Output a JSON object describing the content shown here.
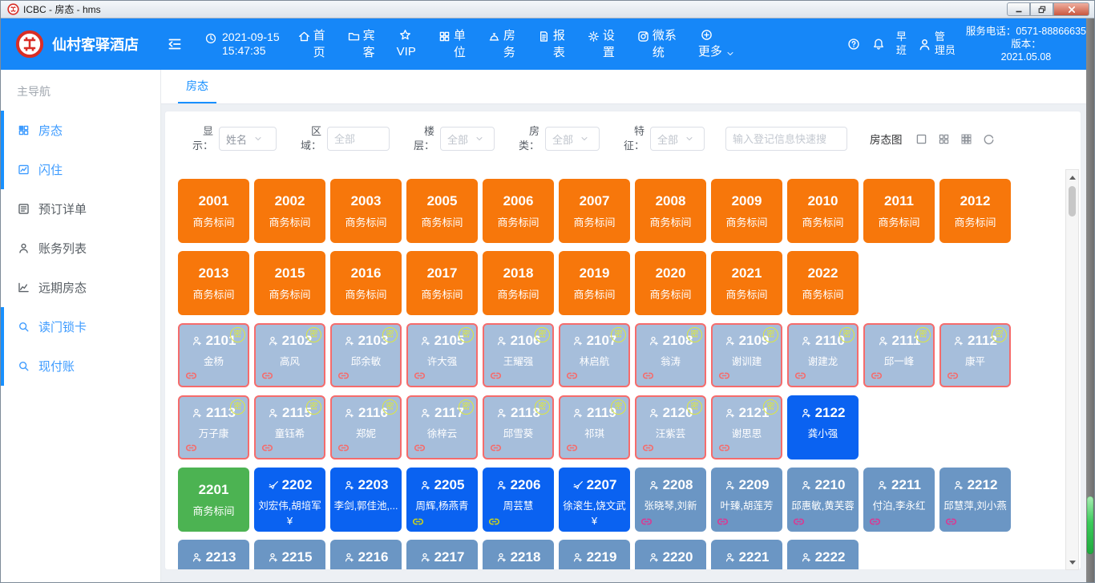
{
  "titlebar": {
    "title": "ICBC - 房态 - hms"
  },
  "header": {
    "hotel_name": "仙村客驿酒店",
    "date": "2021-09-15",
    "time": "15:47:35",
    "nav": [
      {
        "key": "home",
        "icon": "home-icon",
        "label": "首\n页"
      },
      {
        "key": "guests",
        "icon": "folder-icon",
        "label": "宾\n客"
      },
      {
        "key": "vip",
        "icon": "star-icon",
        "label": "VIP",
        "stacked": true
      },
      {
        "key": "units",
        "icon": "units-grid-icon",
        "label": "单\n位"
      },
      {
        "key": "housekeeping",
        "icon": "service-bell-icon",
        "label": "房\n务"
      },
      {
        "key": "reports",
        "icon": "report-doc-icon",
        "label": "报\n表"
      },
      {
        "key": "settings",
        "icon": "gear-icon",
        "label": "设\n置"
      },
      {
        "key": "mini-system",
        "icon": "mini-system-icon",
        "label": "微系\n统"
      },
      {
        "key": "more",
        "icon": "plus-circle-icon",
        "label": "更多",
        "stacked": true,
        "chevron": true
      }
    ],
    "shift_label": "早\n班",
    "user_label": "管\n理员",
    "service_phone": "服务电话：0571-88866635",
    "version_label": "版本：",
    "version_value": "2021.05.08"
  },
  "sidebar": {
    "title": "主导航",
    "groups": [
      {
        "active": true,
        "items": [
          {
            "key": "room-status",
            "icon": "room-grid-icon",
            "label": "房态"
          },
          {
            "key": "flash-stay",
            "icon": "flash-stay-icon",
            "label": "闪住"
          }
        ]
      },
      {
        "active": false,
        "items": [
          {
            "key": "booking-details",
            "icon": "booking-list-icon",
            "label": "预订详单"
          },
          {
            "key": "account-list",
            "icon": "accounts-icon",
            "label": "账务列表"
          },
          {
            "key": "future-status",
            "icon": "future-status-icon",
            "label": "远期房态"
          }
        ]
      },
      {
        "active": true,
        "items": [
          {
            "key": "read-lock-card",
            "icon": "read-card-icon",
            "label": "读门锁卡"
          },
          {
            "key": "cash-account",
            "icon": "cash-pay-icon",
            "label": "现付账"
          }
        ]
      }
    ]
  },
  "tab": {
    "label": "房态"
  },
  "filters": {
    "display": {
      "label": "显\n示：",
      "value": "姓名"
    },
    "area": {
      "label": "区\n域：",
      "placeholder": "全部"
    },
    "floor": {
      "label": "楼\n层：",
      "value": "全部"
    },
    "room_type": {
      "label": "房\n类：",
      "value": "全部"
    },
    "feature": {
      "label": "特\n征：",
      "value": "全部"
    },
    "search_placeholder": "输入登记信息快速搜",
    "status_map_label": "房态图"
  },
  "symbols": {
    "lock": "密",
    "money": "¥"
  },
  "room_rows": [
    {
      "rooms": [
        {
          "number": "2001",
          "label": "商务标间",
          "style": "vacant-orange"
        },
        {
          "number": "2002",
          "label": "商务标间",
          "style": "vacant-orange"
        },
        {
          "number": "2003",
          "label": "商务标间",
          "style": "vacant-orange"
        },
        {
          "number": "2005",
          "label": "商务标间",
          "style": "vacant-orange"
        },
        {
          "number": "2006",
          "label": "商务标间",
          "style": "vacant-orange"
        },
        {
          "number": "2007",
          "label": "商务标间",
          "style": "vacant-orange"
        },
        {
          "number": "2008",
          "label": "商务标间",
          "style": "vacant-orange"
        },
        {
          "number": "2009",
          "label": "商务标间",
          "style": "vacant-orange"
        },
        {
          "number": "2010",
          "label": "商务标间",
          "style": "vacant-orange"
        },
        {
          "number": "2011",
          "label": "商务标间",
          "style": "vacant-orange"
        },
        {
          "number": "2012",
          "label": "商务标间",
          "style": "vacant-orange"
        }
      ]
    },
    {
      "rooms": [
        {
          "number": "2013",
          "label": "商务标间",
          "style": "vacant-orange"
        },
        {
          "number": "2015",
          "label": "商务标间",
          "style": "vacant-orange"
        },
        {
          "number": "2016",
          "label": "商务标间",
          "style": "vacant-orange"
        },
        {
          "number": "2017",
          "label": "商务标间",
          "style": "vacant-orange"
        },
        {
          "number": "2018",
          "label": "商务标间",
          "style": "vacant-orange"
        },
        {
          "number": "2019",
          "label": "商务标间",
          "style": "vacant-orange"
        },
        {
          "number": "2020",
          "label": "商务标间",
          "style": "vacant-orange"
        },
        {
          "number": "2021",
          "label": "商务标间",
          "style": "vacant-orange"
        },
        {
          "number": "2022",
          "label": "商务标间",
          "style": "vacant-orange"
        }
      ]
    },
    {
      "rooms": [
        {
          "number": "2101",
          "label": "金杨",
          "style": "locked",
          "icon": "person-add-icon"
        },
        {
          "number": "2102",
          "label": "高风",
          "style": "locked",
          "icon": "person-add-icon"
        },
        {
          "number": "2103",
          "label": "邱余敏",
          "style": "locked",
          "icon": "person-add-icon"
        },
        {
          "number": "2105",
          "label": "许大强",
          "style": "locked",
          "icon": "person-add-icon"
        },
        {
          "number": "2106",
          "label": "王耀强",
          "style": "locked",
          "icon": "person-add-icon"
        },
        {
          "number": "2107",
          "label": "林启航",
          "style": "locked",
          "icon": "person-add-icon"
        },
        {
          "number": "2108",
          "label": "翁涛",
          "style": "locked",
          "icon": "person-add-icon"
        },
        {
          "number": "2109",
          "label": "谢训建",
          "style": "locked",
          "icon": "person-add-icon"
        },
        {
          "number": "2110",
          "label": "谢建龙",
          "style": "locked",
          "icon": "person-add-icon"
        },
        {
          "number": "2111",
          "label": "邱一峰",
          "style": "locked",
          "icon": "person-add-icon"
        },
        {
          "number": "2112",
          "label": "康平",
          "style": "locked",
          "icon": "person-add-icon"
        }
      ]
    },
    {
      "rooms": [
        {
          "number": "2113",
          "label": "万子康",
          "style": "locked",
          "icon": "person-add-icon"
        },
        {
          "number": "2115",
          "label": "童钰希",
          "style": "locked",
          "icon": "person-add-icon"
        },
        {
          "number": "2116",
          "label": "郑妮",
          "style": "locked",
          "icon": "person-add-icon"
        },
        {
          "number": "2117",
          "label": "徐梓云",
          "style": "locked",
          "icon": "person-add-icon"
        },
        {
          "number": "2118",
          "label": "邱雪葵",
          "style": "locked",
          "icon": "person-add-icon"
        },
        {
          "number": "2119",
          "label": "祁琪",
          "style": "locked",
          "icon": "person-add-icon"
        },
        {
          "number": "2120",
          "label": "汪紫芸",
          "style": "locked",
          "icon": "person-add-icon"
        },
        {
          "number": "2121",
          "label": "谢思思",
          "style": "locked",
          "icon": "person-add-icon"
        },
        {
          "number": "2122",
          "label": "龚小强",
          "style": "occupied-blue",
          "icon": "person-add-icon"
        }
      ]
    },
    {
      "rooms": [
        {
          "number": "2201",
          "label": "商务标间",
          "style": "vacant-green"
        },
        {
          "number": "2202",
          "label": "刘宏伟,胡培军",
          "style": "occupied-blue",
          "icon": "broom-icon",
          "money": true
        },
        {
          "number": "2203",
          "label": "李剑,郭佳池,...",
          "style": "occupied-blue",
          "icon": "person-add-icon"
        },
        {
          "number": "2205",
          "label": "周辉,杨燕青",
          "style": "occupied-blue",
          "icon": "person-add-icon",
          "link": "yellow"
        },
        {
          "number": "2206",
          "label": "周芸慧",
          "style": "occupied-blue",
          "icon": "person-add-icon",
          "link": "yellow"
        },
        {
          "number": "2207",
          "label": "徐滚生,饶文武",
          "style": "occupied-blue",
          "icon": "broom-icon",
          "money": true
        },
        {
          "number": "2208",
          "label": "张晓琴,刘新",
          "style": "occupied-steel",
          "icon": "person-add-icon",
          "link": "pink"
        },
        {
          "number": "2209",
          "label": "叶臻,胡莲芳",
          "style": "occupied-steel",
          "icon": "person-add-icon",
          "link": "pink"
        },
        {
          "number": "2210",
          "label": "邱惠敏,黄芙蓉",
          "style": "occupied-steel",
          "icon": "person-add-icon",
          "link": "pink"
        },
        {
          "number": "2211",
          "label": "付泊,李永红",
          "style": "occupied-steel",
          "icon": "person-add-icon",
          "link": "pink"
        },
        {
          "number": "2212",
          "label": "邱慧萍,刘小燕",
          "style": "occupied-steel",
          "icon": "person-add-icon",
          "link": "pink"
        }
      ]
    },
    {
      "rooms": [
        {
          "number": "2213",
          "label": "",
          "style": "occupied-steel",
          "icon": "person-add-icon"
        },
        {
          "number": "2215",
          "label": "",
          "style": "occupied-steel",
          "icon": "person-add-icon"
        },
        {
          "number": "2216",
          "label": "",
          "style": "occupied-steel",
          "icon": "person-add-icon"
        },
        {
          "number": "2217",
          "label": "",
          "style": "occupied-steel",
          "icon": "person-add-icon"
        },
        {
          "number": "2218",
          "label": "",
          "style": "occupied-steel",
          "icon": "person-add-icon"
        },
        {
          "number": "2219",
          "label": "",
          "style": "occupied-steel",
          "icon": "person-add-icon"
        },
        {
          "number": "2220",
          "label": "",
          "style": "occupied-steel",
          "icon": "person-add-icon"
        },
        {
          "number": "2221",
          "label": "",
          "style": "occupied-steel",
          "icon": "person-add-icon"
        },
        {
          "number": "2222",
          "label": "",
          "style": "occupied-steel",
          "icon": "person-add-icon"
        }
      ]
    }
  ]
}
